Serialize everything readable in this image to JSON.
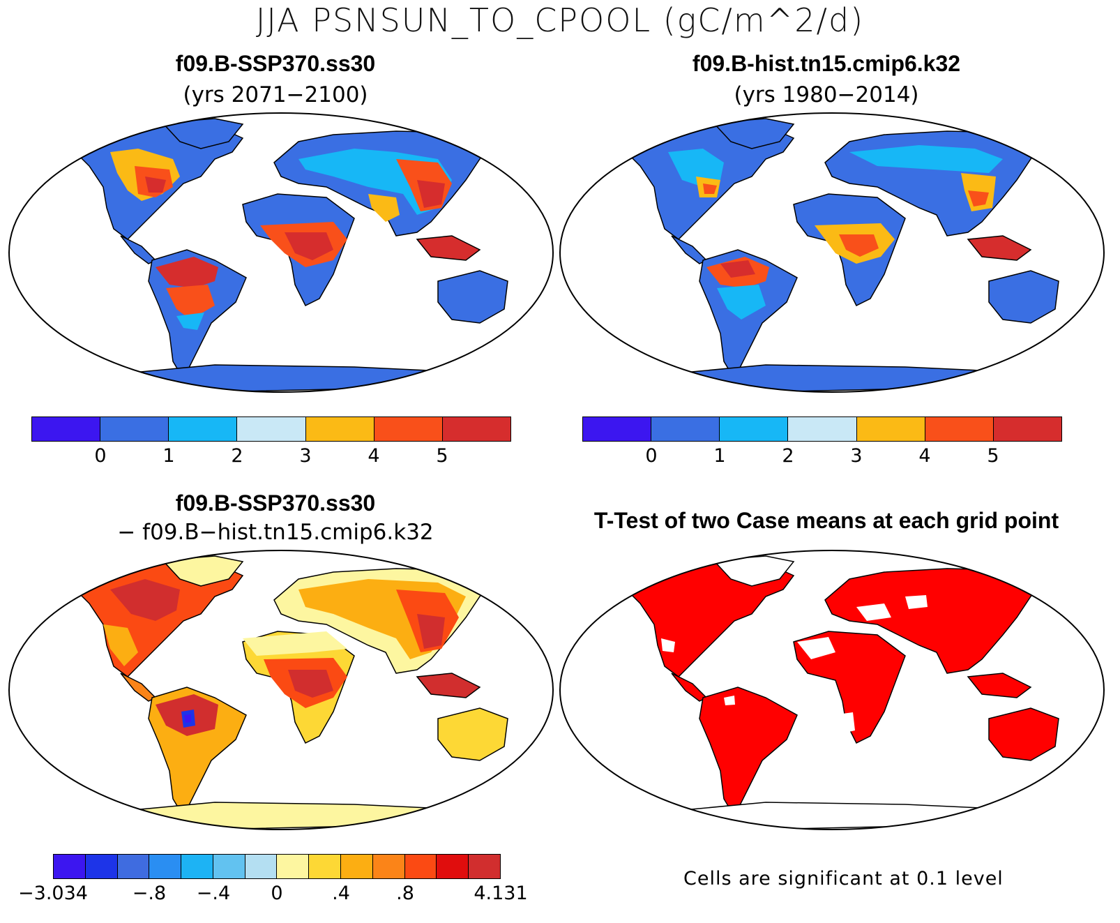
{
  "figure": {
    "title": "JJA PSNSUN_TO_CPOOL (gC/m^2/d)"
  },
  "panels": {
    "top_left": {
      "title": "f09.B-SSP370.ss30",
      "subtitle": "(yrs 2071−2100)"
    },
    "top_right": {
      "title": "f09.B-hist.tn15.cmip6.k32",
      "subtitle": "(yrs 1980−2014)"
    },
    "bottom_left": {
      "title": "f09.B-SSP370.ss30",
      "subtitle": "− f09.B−hist.tn15.cmip6.k32"
    },
    "bottom_right": {
      "title": "T-Test of two Case means at each grid point",
      "note": "Cells are significant at 0.1 level"
    }
  },
  "colorbars": {
    "absolute": {
      "colors": [
        "#3c16f0",
        "#3a6fe3",
        "#17b7f6",
        "#c9e8f6",
        "#fbba15",
        "#f9501a",
        "#d62d2d"
      ],
      "ticks": [
        "0",
        "1",
        "2",
        "3",
        "4",
        "5"
      ]
    },
    "difference": {
      "colors": [
        "#3c16f0",
        "#1d34e8",
        "#3f6ce0",
        "#2a8ef2",
        "#1db3f4",
        "#62c2f0",
        "#b4dff2",
        "#fdf6a0",
        "#fdd835",
        "#fcae12",
        "#fb8418",
        "#fb4a13",
        "#e00d0d",
        "#d12e2e"
      ],
      "end_labels": [
        "−3.034",
        "4.131"
      ],
      "ticks": [
        "−.8",
        "−.4",
        "0",
        ".4",
        ".8"
      ]
    }
  },
  "map_colors": {
    "ocean": "#ffffff",
    "coast": "#000000",
    "significant": "#ff0000"
  }
}
